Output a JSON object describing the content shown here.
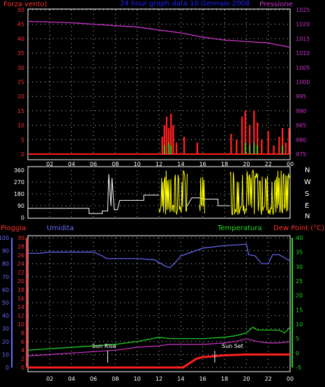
{
  "header": {
    "left": "Forza vento)",
    "center": "24 hour graph data  10 Gennaio 2008",
    "right": "Pressione"
  },
  "direction_letters": [
    "N",
    "W",
    "S",
    "E",
    "N"
  ],
  "lower_labels": {
    "rain": "Pioggia",
    "humidity": "Umidita",
    "temperature": "Temperatura",
    "dewpoint": "Dew Point (°C)",
    "sunrise": "Sun Rise",
    "sunset": "Sun Set"
  },
  "colors": {
    "wind": "#ff2020",
    "gust": "#22dd22",
    "pressure": "#cc33cc",
    "direction": "#ffff00",
    "humidity": "#6a6aff",
    "temperature": "#22dd22",
    "dewpoint": "#cc33cc",
    "rain": "#ff2020",
    "grid": "#ffffff",
    "axis_red": "#ff3030",
    "axis_blue": "#6a6aff",
    "axis_green": "#22dd22",
    "axis_magenta": "#cc33cc"
  },
  "chart_data": [
    {
      "type": "line",
      "name": "wind-pressure",
      "x_ticks": [
        "02",
        "04",
        "06",
        "08",
        "10",
        "12",
        "14",
        "16",
        "18",
        "20",
        "22",
        "00"
      ],
      "y_left_ticks": [
        "0",
        "5",
        "10",
        "15",
        "20",
        "25",
        "30",
        "35",
        "40",
        "45",
        "50"
      ],
      "y_left_range": [
        0,
        50
      ],
      "y_right_ticks": [
        "975",
        "980",
        "985",
        "990",
        "995",
        "1000",
        "1005",
        "1010",
        "1015",
        "1020",
        "1025"
      ],
      "y_right_range": [
        975,
        1025
      ],
      "pressure": {
        "x": [
          0,
          4,
          8,
          10,
          12,
          14,
          16,
          18,
          20,
          22,
          24
        ],
        "y": [
          1021,
          1020.5,
          1019.5,
          1019,
          1018,
          1017,
          1015.5,
          1014.5,
          1014,
          1013.5,
          1012
        ]
      },
      "wind_bursts": [
        {
          "x": 12.3,
          "y": 6
        },
        {
          "x": 12.5,
          "y": 10
        },
        {
          "x": 12.7,
          "y": 13
        },
        {
          "x": 12.9,
          "y": 9
        },
        {
          "x": 13.1,
          "y": 14
        },
        {
          "x": 13.3,
          "y": 10
        },
        {
          "x": 13.6,
          "y": 4
        },
        {
          "x": 14.3,
          "y": 6
        },
        {
          "x": 15.5,
          "y": 4
        },
        {
          "x": 18.6,
          "y": 7
        },
        {
          "x": 19.1,
          "y": 5
        },
        {
          "x": 19.6,
          "y": 13
        },
        {
          "x": 19.9,
          "y": 15
        },
        {
          "x": 20.3,
          "y": 10
        },
        {
          "x": 20.7,
          "y": 15
        },
        {
          "x": 21.0,
          "y": 11
        },
        {
          "x": 21.4,
          "y": 5
        },
        {
          "x": 22.0,
          "y": 8
        },
        {
          "x": 22.5,
          "y": 3
        },
        {
          "x": 23.0,
          "y": 6
        },
        {
          "x": 23.3,
          "y": 9
        },
        {
          "x": 23.6,
          "y": 4
        },
        {
          "x": 23.9,
          "y": 9
        }
      ],
      "gust_bursts": [
        {
          "x": 12.5,
          "y": 3
        },
        {
          "x": 12.9,
          "y": 4
        },
        {
          "x": 13.1,
          "y": 3
        },
        {
          "x": 19.9,
          "y": 4
        },
        {
          "x": 20.3,
          "y": 3
        },
        {
          "x": 20.7,
          "y": 4
        },
        {
          "x": 21.0,
          "y": 3
        },
        {
          "x": 23.3,
          "y": 3
        }
      ]
    },
    {
      "type": "line",
      "name": "wind-direction",
      "y_ticks": [
        "0",
        "90",
        "180",
        "270",
        "360"
      ],
      "y_range": [
        0,
        360
      ],
      "steps": [
        {
          "x": 0,
          "y": 70
        },
        {
          "x": 5.6,
          "y": 70
        },
        {
          "x": 5.6,
          "y": 30
        },
        {
          "x": 6.8,
          "y": 30
        },
        {
          "x": 6.8,
          "y": 50
        },
        {
          "x": 7.3,
          "y": 50
        },
        {
          "x": 7.4,
          "y": 330
        },
        {
          "x": 7.6,
          "y": 90
        },
        {
          "x": 7.7,
          "y": 300
        },
        {
          "x": 7.9,
          "y": 60
        },
        {
          "x": 8.2,
          "y": 60
        },
        {
          "x": 8.4,
          "y": 130
        },
        {
          "x": 10.6,
          "y": 130
        },
        {
          "x": 10.6,
          "y": 170
        },
        {
          "x": 12.0,
          "y": 170
        }
      ],
      "dense_ranges": [
        [
          12.0,
          14.6
        ],
        [
          15.7,
          16.2
        ],
        [
          18.5,
          24
        ]
      ],
      "mid_steps": [
        {
          "x": 14.6,
          "y": 90
        },
        {
          "x": 15.0,
          "y": 150
        },
        {
          "x": 15.7,
          "y": 150
        },
        {
          "x": 16.2,
          "y": 140
        },
        {
          "x": 17.4,
          "y": 140
        },
        {
          "x": 17.4,
          "y": 90
        },
        {
          "x": 18.5,
          "y": 90
        }
      ]
    },
    {
      "type": "line",
      "name": "temperature-humidity",
      "y_humidity_ticks": [
        "0",
        "10",
        "20",
        "30",
        "40",
        "50",
        "60",
        "70",
        "80",
        "90",
        "100"
      ],
      "y_humidity_range": [
        0,
        100
      ],
      "y_rain_ticks": [
        "0",
        "2",
        "4",
        "6",
        "8",
        "10",
        "12",
        "14",
        "16",
        "18",
        "20",
        "22",
        "24",
        "26",
        "28",
        "30"
      ],
      "y_rain_range": [
        0,
        30
      ],
      "y_temp_ticks": [
        "-5",
        "0",
        "5",
        "10",
        "15",
        "20",
        "25",
        "30",
        "35",
        "40"
      ],
      "y_temp_range": [
        -5,
        40
      ],
      "humidity": {
        "x": [
          0,
          1,
          2,
          4,
          6,
          6.8,
          7.2,
          8,
          10,
          11.6,
          12,
          12.6,
          13,
          13.6,
          14,
          16,
          17,
          18,
          20,
          20.2,
          20.8,
          21.4,
          22,
          22.4,
          23,
          24
        ],
        "y": [
          88,
          88,
          89,
          89,
          89,
          86,
          84,
          84,
          84,
          83,
          81,
          78,
          77,
          82,
          86,
          92,
          93,
          94,
          95,
          87,
          86,
          80,
          80,
          87,
          87,
          82
        ]
      },
      "temperature": {
        "x": [
          0,
          2,
          4,
          6,
          8,
          10,
          12,
          13,
          14,
          16,
          18,
          19,
          20,
          20.6,
          21,
          22,
          23,
          23.5,
          24
        ],
        "y": [
          1,
          1.5,
          2,
          2.5,
          3,
          4,
          5.5,
          5,
          5,
          5,
          5.5,
          6,
          7,
          9,
          8,
          8,
          8,
          7,
          9
        ]
      },
      "dewpoint": {
        "x": [
          0,
          2,
          4,
          6,
          8,
          10,
          12,
          13,
          14,
          16,
          18,
          19,
          20,
          21,
          22,
          23,
          24
        ],
        "y": [
          -1,
          -0.5,
          0,
          0.5,
          1,
          2,
          2.5,
          3,
          3,
          3,
          3.5,
          4,
          5,
          4,
          3.5,
          3.5,
          4
        ]
      },
      "rain": {
        "x": [
          0,
          14.2,
          14.8,
          15.4,
          16,
          17,
          18,
          19,
          20,
          21,
          22,
          24
        ],
        "y": [
          0,
          0,
          1,
          2,
          2.4,
          2.6,
          2.8,
          2.9,
          3,
          3,
          3,
          3
        ]
      },
      "sunrise_hour": 7.3,
      "sunset_hour": 17.1
    }
  ]
}
